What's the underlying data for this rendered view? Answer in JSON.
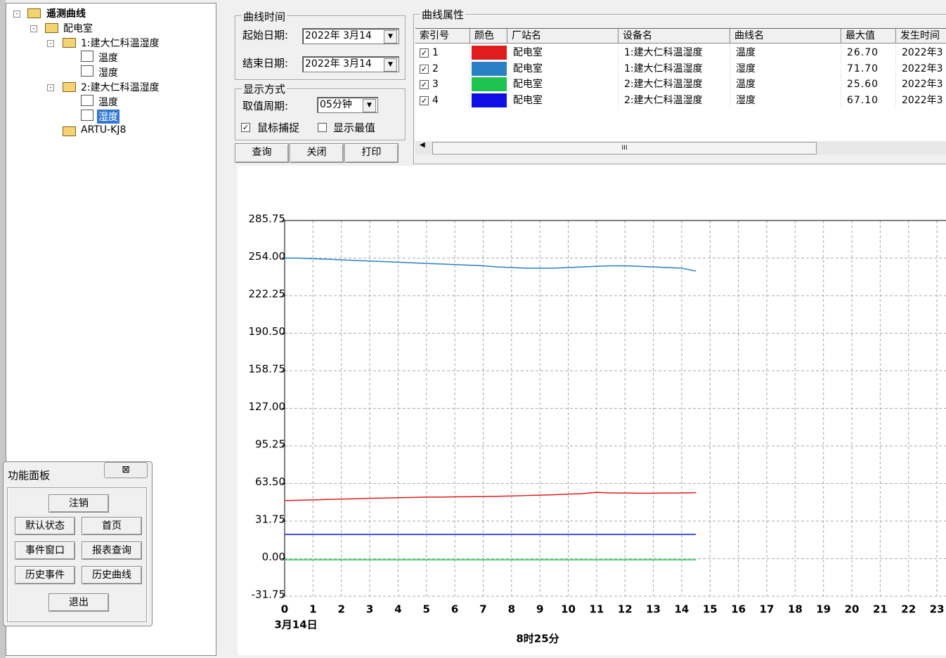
{
  "tree": {
    "label": "遥测曲线",
    "children": [
      {
        "label": "配电室",
        "children": [
          {
            "label": "1:建大仁科温湿度",
            "children": [
              {
                "label": "温度"
              },
              {
                "label": "湿度"
              }
            ]
          },
          {
            "label": "2:建大仁科温湿度",
            "children": [
              {
                "label": "温度"
              },
              {
                "label": "湿度"
              }
            ]
          },
          {
            "label": "ARTU-KJ8"
          }
        ]
      }
    ]
  },
  "curve_time": {
    "title": "曲线时间",
    "start_label": "起始日期:",
    "start_value": "2022年 3月14",
    "end_label": "结束日期:",
    "end_value": "2022年 3月14"
  },
  "display": {
    "title": "显示方式",
    "period_label": "取值周期:",
    "period_value": "05分钟",
    "mouse_capture": "鼠标捕捉",
    "show_extremes": "显示最值"
  },
  "buttons": [
    "查询",
    "关闭",
    "打印"
  ],
  "curve_props": {
    "title": "曲线属性",
    "headers": [
      "索引号",
      "颜色",
      "厂站名",
      "设备名",
      "曲线名",
      "最大值",
      "发生时间"
    ],
    "rows": [
      [
        "1",
        "配电室",
        "1:建大仁科温湿度",
        "温度",
        "26.70",
        "2022年3"
      ],
      [
        "2",
        "配电室",
        "1:建大仁科温湿度",
        "湿度",
        "71.70",
        "2022年3"
      ],
      [
        "3",
        "配电室",
        "2:建大仁科温湿度",
        "温度",
        "25.60",
        "2022年3"
      ],
      [
        "4",
        "配电室",
        "2:建大仁科温湿度",
        "湿度",
        "67.10",
        "2022年3"
      ]
    ]
  },
  "function_panel": {
    "title": "功能面板",
    "buttons": [
      "注销",
      "默认状态",
      "首页",
      "事件窗口",
      "报表查询",
      "历史事件",
      "历史曲线",
      "退出"
    ]
  },
  "chart_data": {
    "type": "line",
    "x_date": "3月14日",
    "x_label": "8时25分",
    "x": [
      0,
      0.5,
      1,
      1.5,
      2,
      2.5,
      3,
      3.5,
      4,
      4.5,
      5,
      5.5,
      6,
      6.5,
      7,
      7.5,
      8,
      8.5,
      9,
      9.5,
      10,
      10.5,
      11,
      11.5,
      12,
      12.5,
      13,
      13.5,
      14,
      14.5
    ],
    "xlim": [
      0,
      23.32
    ],
    "xticks": [
      0,
      1,
      2,
      3,
      4,
      5,
      6,
      7,
      8,
      9,
      10,
      11,
      12,
      13,
      14,
      15,
      16,
      17,
      18,
      19,
      20,
      21,
      22,
      23
    ],
    "ylim": [
      -31.75,
      285.75
    ],
    "yticks": [
      -31.75,
      {
        "value": 0,
        "label": "0.00"
      },
      31.75,
      {
        "value": 63.5,
        "label": "63.50"
      },
      95.25,
      {
        "value": 127,
        "label": "127.00"
      },
      158.75,
      {
        "value": 190.5,
        "label": "190.50"
      },
      222.25,
      {
        "value": 254,
        "label": "254.00"
      },
      285.75
    ],
    "grid": true,
    "series": [
      {
        "color": "#e01c1c",
        "values": [
          49,
          49.3,
          49.6,
          50,
          50.3,
          50.6,
          51,
          51.2,
          51.5,
          51.7,
          52,
          52,
          52.2,
          52.3,
          52.5,
          52.7,
          53,
          53.3,
          53.6,
          54,
          54.5,
          55,
          56,
          55.5,
          55.5,
          55.3,
          55.3,
          55.5,
          55.5,
          55.8
        ]
      },
      {
        "color": "#2a80c4",
        "values": [
          254,
          254,
          253.5,
          253,
          252.5,
          252,
          251.5,
          251,
          250.5,
          250,
          249.5,
          249,
          248.5,
          248,
          247.5,
          246.5,
          246,
          245.5,
          245.5,
          245.5,
          246,
          246.5,
          247,
          247.5,
          247.5,
          247,
          246.5,
          246,
          245.5,
          243
        ]
      },
      {
        "color": "#1ec24e",
        "values": [
          -1,
          -1,
          -1,
          -1,
          -1,
          -1,
          -1,
          -1,
          -1,
          -1,
          -1,
          -1,
          -1,
          -1,
          -1,
          -1,
          -1,
          -1,
          -1,
          -1,
          -1,
          -1,
          -1,
          -1,
          -1,
          -1,
          -1,
          -1,
          -1,
          -1
        ]
      },
      {
        "color": "#1010e6",
        "values": [
          20.5,
          20.5,
          20.5,
          20.5,
          20.5,
          20.5,
          20.5,
          20.5,
          20.5,
          20.5,
          20.5,
          20.5,
          20.5,
          20.5,
          20.5,
          20.5,
          20.5,
          20.5,
          20.5,
          20.5,
          20.5,
          20.5,
          20.5,
          20.5,
          20.5,
          20.5,
          20.5,
          20.5,
          20.5,
          20.5
        ]
      }
    ]
  }
}
